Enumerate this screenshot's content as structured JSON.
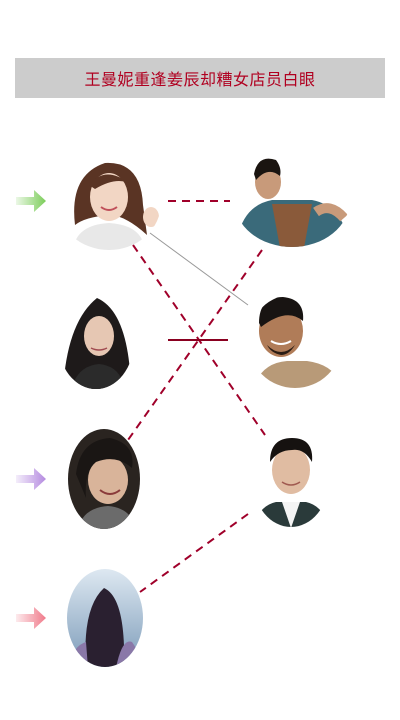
{
  "title": "王曼妮重逢姜辰却糟女店员白眼",
  "colors": {
    "title_text": "#b00020",
    "title_bg": "#cccccc",
    "dashed_line": "#a0002a",
    "solid_line_dark": "#8a0020",
    "thin_line": "#999999",
    "arrow_green": "#7ccd5a",
    "arrow_purple": "#b58be0",
    "arrow_pink": "#f07a8a"
  },
  "left_people": [
    {
      "name": "woman-smiling-portrait",
      "skin": "#f2d6c4",
      "hair": "#5a3424",
      "cloth": "#e8e8e8"
    },
    {
      "name": "woman-dark-hair-portrait",
      "skin": "#e6c7b3",
      "hair": "#1e1a1a",
      "cloth": "#2b2b2b"
    },
    {
      "name": "woman-laughing-portrait",
      "skin": "#d9b49a",
      "hair": "#1a1614",
      "cloth": "#6b6b6b"
    },
    {
      "name": "woman-back-view-portrait",
      "skin": "#c9d8e6",
      "hair": "#2a2030",
      "cloth": "#8a78a8"
    }
  ],
  "right_people": [
    {
      "name": "man-apron-portrait",
      "skin": "#c89a7a",
      "hair": "#1a1410",
      "cloth": "#3a6a7a"
    },
    {
      "name": "man-beard-smiling-portrait",
      "skin": "#b07c58",
      "hair": "#181412",
      "cloth": "#b89a78"
    },
    {
      "name": "man-suit-portrait",
      "skin": "#e0bca2",
      "hair": "#161210",
      "cloth": "#2a3a3a"
    }
  ],
  "arrows": [
    "green-arrow-icon",
    "purple-arrow-icon",
    "pink-arrow-icon"
  ]
}
